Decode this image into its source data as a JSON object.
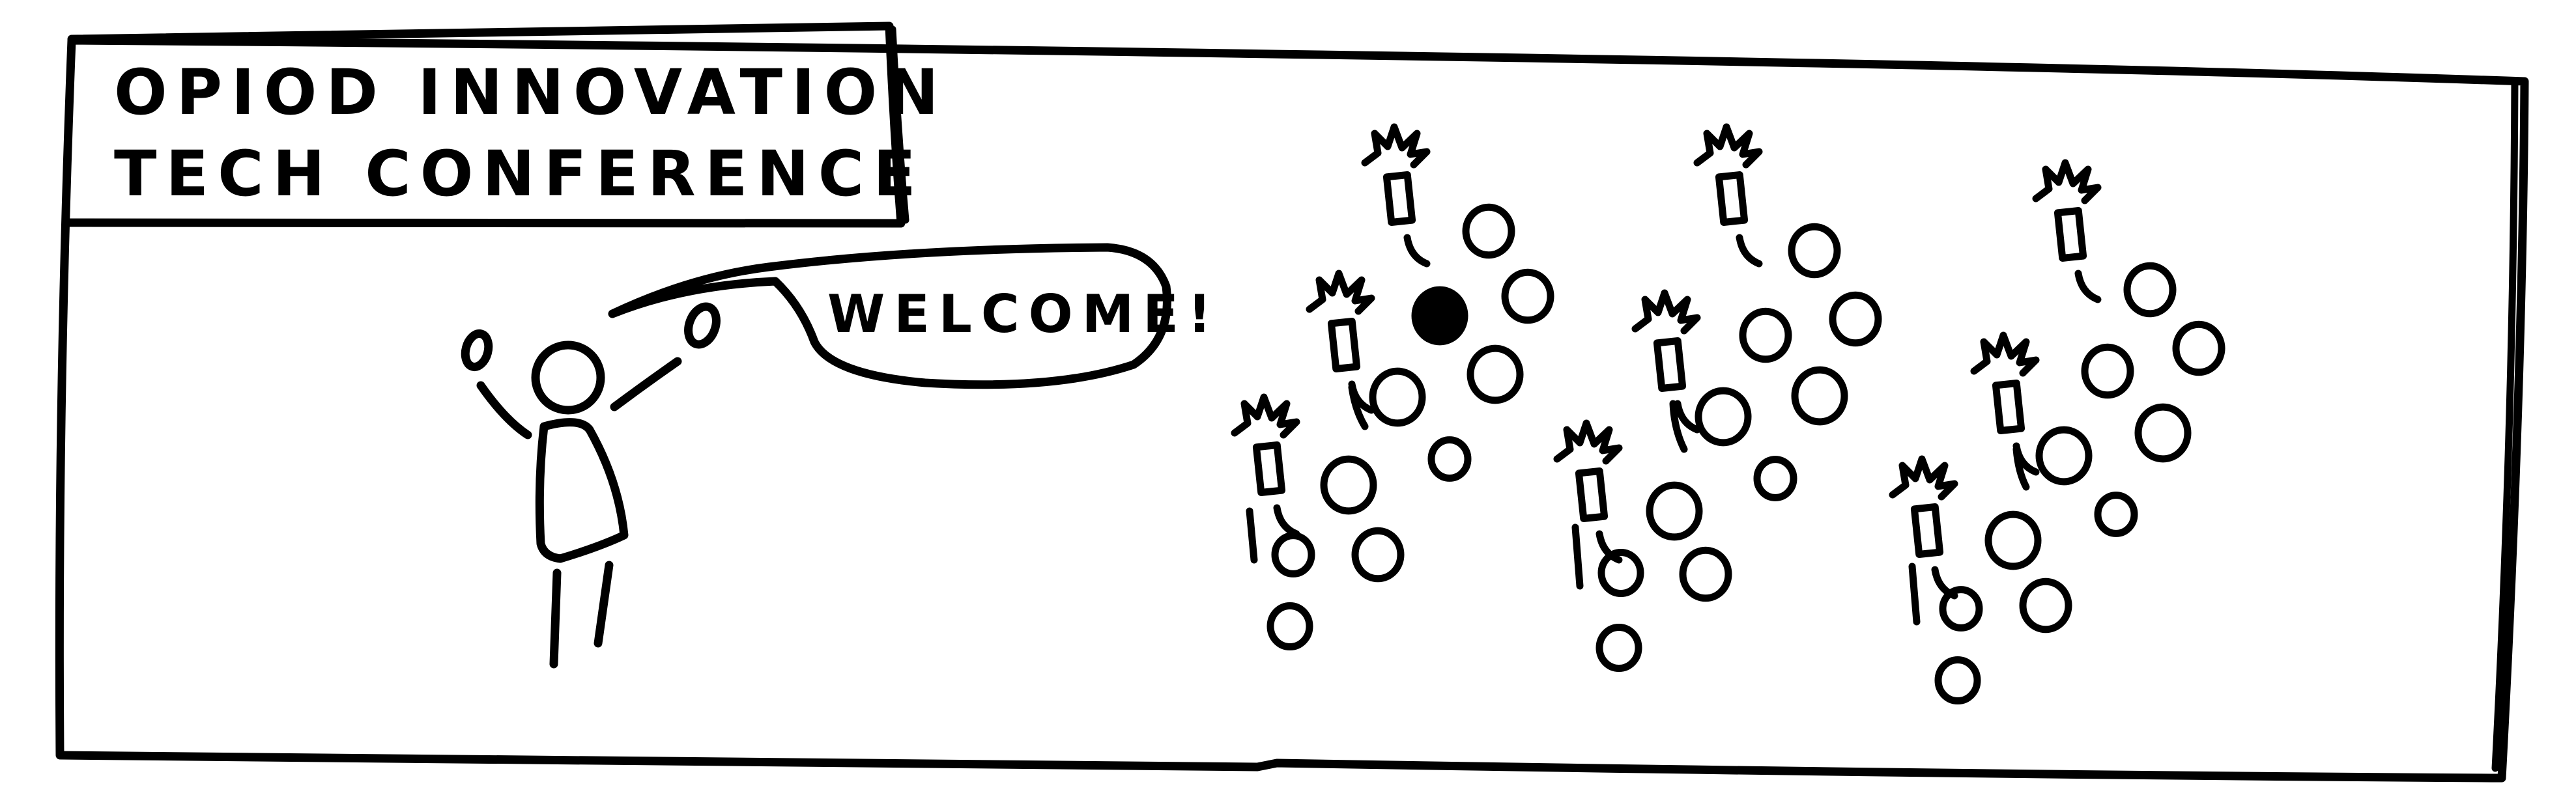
{
  "sign": {
    "line1": "OPIOD INNOVATION",
    "line2": "TECH CONFERENCE"
  },
  "speech": {
    "text": "WELCOME!"
  },
  "colors": {
    "ink": "#000000",
    "paper": "#ffffff"
  }
}
